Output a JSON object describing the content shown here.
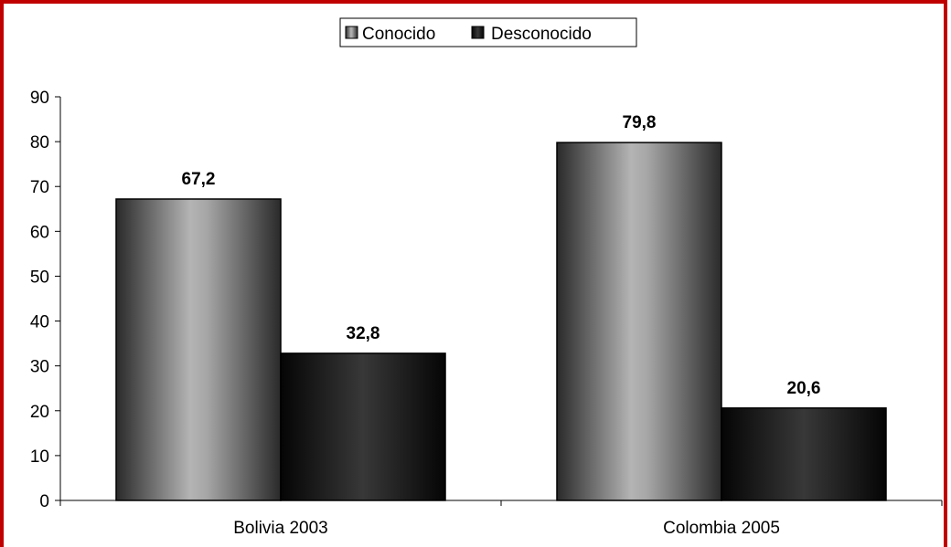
{
  "chart_data": {
    "type": "bar",
    "title": "",
    "xlabel": "",
    "ylabel": "",
    "categories": [
      "Bolivia 2003",
      "Colombia 2005"
    ],
    "series": [
      {
        "name": "Conocido",
        "values": [
          67.2,
          79.8
        ],
        "value_labels": [
          "67,2",
          "79,8"
        ],
        "color": "#9a9a9a"
      },
      {
        "name": "Desconocido",
        "values": [
          32.8,
          20.6
        ],
        "value_labels": [
          "32,8",
          "20,6"
        ],
        "color": "#1c1c1c"
      }
    ],
    "ylim": [
      0,
      90
    ],
    "yticks": [
      0,
      10,
      20,
      30,
      40,
      50,
      60,
      70,
      80,
      90
    ],
    "ytick_labels": [
      "0",
      "10",
      "20",
      "30",
      "40",
      "50",
      "60",
      "70",
      "80",
      "90"
    ],
    "legend_position": "top-center",
    "grid": false
  },
  "colors": {
    "frame": "#c00000",
    "axis": "#000000"
  }
}
